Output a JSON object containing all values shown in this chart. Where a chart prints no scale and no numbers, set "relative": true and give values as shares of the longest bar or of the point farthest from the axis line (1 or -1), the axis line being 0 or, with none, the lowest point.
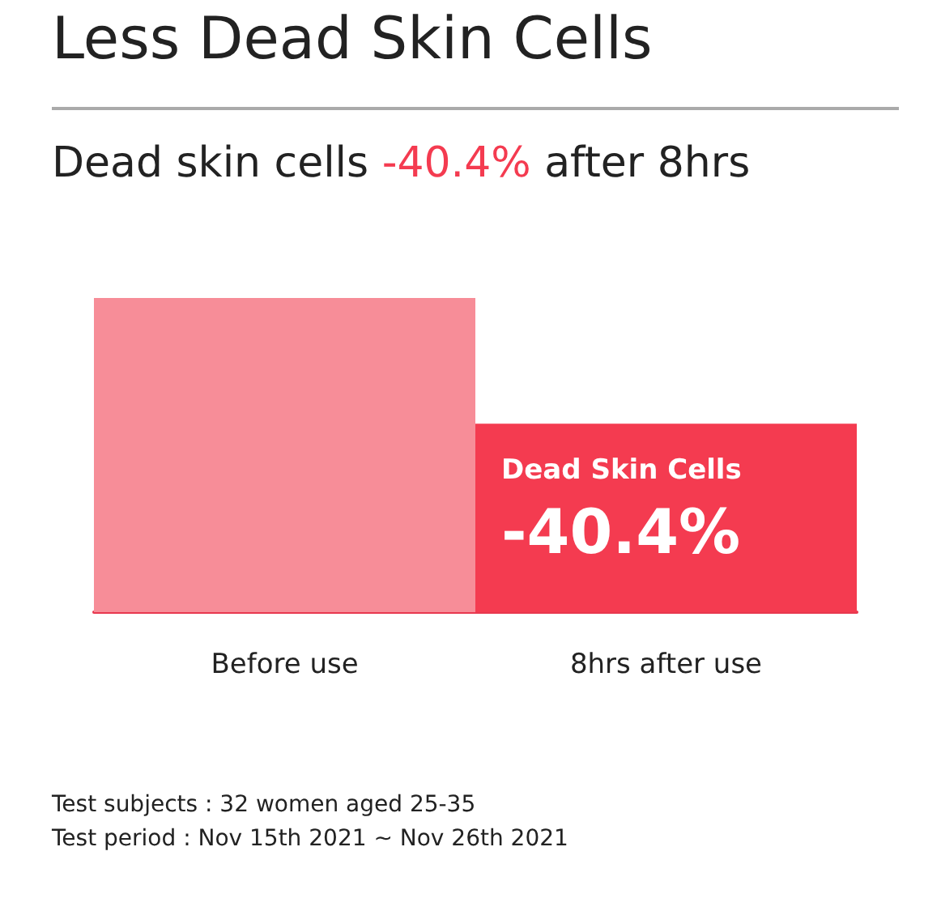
{
  "chart_data": {
    "type": "bar",
    "title": "Less Dead Skin Cells",
    "subtitle": "Dead skin cells -40.4% after 8hrs",
    "categories": [
      "Before use",
      "8hrs after use"
    ],
    "values": [
      1,
      0.6
    ],
    "colors": [
      "#f78d98",
      "#f43b50"
    ],
    "relative": true,
    "annotations": [
      {
        "text": "Dead Skin Cells\n-40.4%",
        "x": "8hrs after use",
        "y": 0.6
      },
      "Test subjects : 32 women aged 25-35",
      "Test period : Nov 15th 2021 ~ Nov 26th 2021"
    ]
  }
}
